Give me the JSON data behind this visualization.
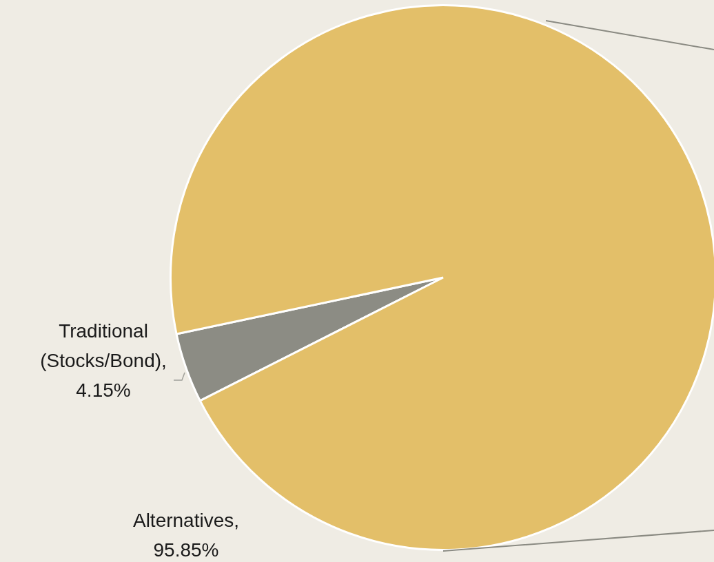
{
  "chart_data": {
    "type": "pie",
    "categories": [
      "Traditional (Stocks/Bond)",
      "Alternatives"
    ],
    "values": [
      4.15,
      95.85
    ],
    "value_labels": [
      ", 4.15%",
      ", 95.85%"
    ],
    "colors": [
      "#8c8c84",
      "#e3bf69"
    ],
    "legend": false
  }
}
